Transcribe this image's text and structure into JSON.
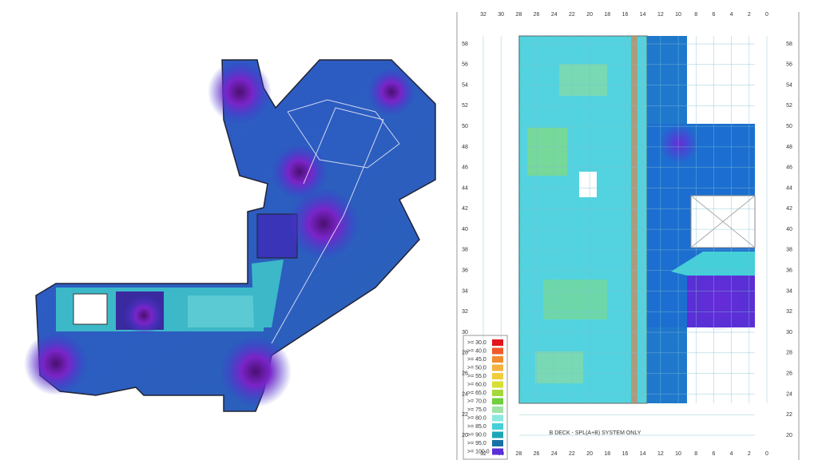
{
  "right_plan": {
    "caption": "B DECK - SPL(A+B) SYSTEM ONLY",
    "top_scale": [
      32,
      30,
      28,
      26,
      24,
      22,
      20,
      18,
      16,
      14,
      12,
      10,
      8,
      6,
      4,
      2,
      0
    ],
    "side_scale": [
      58,
      56,
      54,
      52,
      50,
      48,
      46,
      44,
      42,
      40,
      38,
      36,
      34,
      32,
      30,
      28,
      26,
      24,
      22,
      20
    ],
    "legend": [
      {
        "label": ">= 30.0",
        "color": "#e3161b"
      },
      {
        "label": ">= 40.0",
        "color": "#ef5a2a"
      },
      {
        "label": ">= 45.0",
        "color": "#f28c2f"
      },
      {
        "label": ">= 50.0",
        "color": "#f6b13e"
      },
      {
        "label": ">= 55.0",
        "color": "#f2cd3b"
      },
      {
        "label": ">= 60.0",
        "color": "#d8e032"
      },
      {
        "label": ">= 65.0",
        "color": "#a6d83a"
      },
      {
        "label": ">= 70.0",
        "color": "#6fcf3c"
      },
      {
        "label": ">= 75.0",
        "color": "#9fe3a6"
      },
      {
        "label": ">= 80.0",
        "color": "#8ce8e0"
      },
      {
        "label": ">= 85.0",
        "color": "#45cfd8"
      },
      {
        "label": ">= 90.0",
        "color": "#1ea6b8"
      },
      {
        "label": ">= 95.0",
        "color": "#1672a6"
      },
      {
        "label": ">= 100.0",
        "color": "#5b2fd6"
      }
    ]
  }
}
